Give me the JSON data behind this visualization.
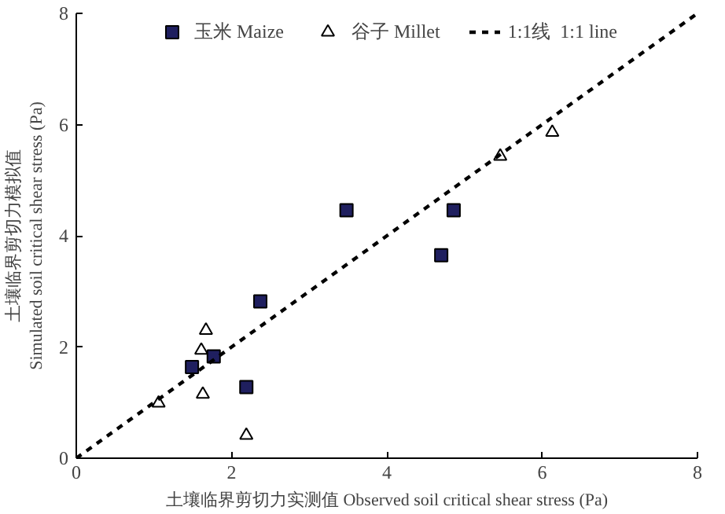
{
  "chart_data": {
    "type": "scatter",
    "xlabel": "土壤临界剪切力实测值 Observed soil critical shear stress (Pa)",
    "ylabel": "土壤临界剪切力模拟值\nSimulated soil critical shear stress (Pa)",
    "xlim": [
      0,
      8
    ],
    "ylim": [
      0,
      8
    ],
    "xticks": [
      0,
      2,
      4,
      6,
      8
    ],
    "yticks": [
      0,
      2,
      4,
      6,
      8
    ],
    "grid": false,
    "legend": "top",
    "series": [
      {
        "name": "玉米 Maize",
        "marker": "square",
        "color": "#1f1f5f",
        "x": [
          1.49,
          1.77,
          2.19,
          2.37,
          3.48,
          4.7,
          4.86
        ],
        "values": [
          1.64,
          1.83,
          1.28,
          2.82,
          4.46,
          3.65,
          4.46
        ]
      },
      {
        "name": "谷子 Millet",
        "marker": "triangle",
        "color": "#ffffff",
        "x": [
          1.06,
          1.61,
          1.67,
          1.63,
          2.19,
          5.46,
          6.13
        ],
        "values": [
          0.99,
          1.94,
          2.3,
          1.15,
          0.41,
          5.43,
          5.86
        ]
      },
      {
        "name": "1:1线  1:1 line",
        "type": "line",
        "marker": "none",
        "line_style": "dashed",
        "color": "#000000",
        "x": [
          0,
          8
        ],
        "values": [
          0,
          8
        ]
      }
    ]
  }
}
